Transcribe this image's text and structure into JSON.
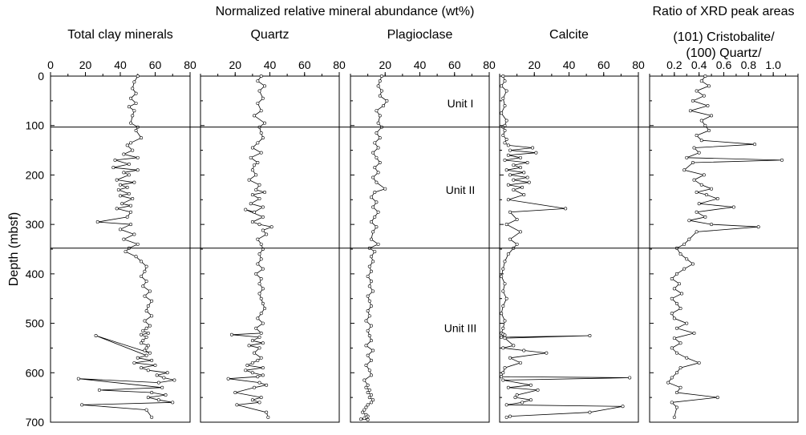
{
  "header": {
    "left": "Normalized relative mineral abundance (wt%)",
    "right": "Ratio of XRD peak areas"
  },
  "units": [
    {
      "label": "Unit I",
      "depth": 55
    },
    {
      "label": "Unit II",
      "depth": 230
    },
    {
      "label": "Unit III",
      "depth": 510
    }
  ],
  "boundaries": [
    103,
    348
  ],
  "y_axis": {
    "label": "Depth (mbsf)",
    "range": [
      0,
      700
    ],
    "ticks": [
      0,
      100,
      200,
      300,
      400,
      500,
      600,
      700
    ]
  },
  "chart_data": [
    {
      "type": "line",
      "title": "Total clay minerals",
      "x_range": [
        0,
        80
      ],
      "xticks": [
        "0",
        "20",
        "40",
        "60",
        "80"
      ],
      "x": [
        50,
        48,
        47,
        49,
        46,
        49,
        45,
        48,
        47,
        46,
        50,
        49,
        52,
        46,
        44,
        47,
        42,
        50,
        37,
        45,
        36,
        50,
        42,
        45,
        38,
        48,
        40,
        44,
        39,
        45,
        40,
        47,
        41,
        46,
        38,
        46,
        44,
        27,
        46,
        40,
        48,
        42,
        50,
        45,
        43,
        49,
        52,
        55,
        54,
        52,
        55,
        53,
        57,
        54,
        58,
        56,
        55,
        58,
        54,
        57,
        55,
        53,
        56,
        52,
        55,
        53,
        52,
        56,
        55,
        54,
        57,
        26,
        55,
        50,
        58,
        48,
        60,
        52,
        56,
        67,
        61,
        65,
        71,
        62,
        16,
        64,
        28,
        58,
        66,
        56,
        62,
        70,
        18,
        55,
        58
      ],
      "y": [
        0,
        12,
        25,
        35,
        45,
        55,
        62,
        70,
        80,
        95,
        103,
        110,
        125,
        135,
        140,
        150,
        158,
        165,
        170,
        178,
        185,
        190,
        195,
        200,
        210,
        215,
        220,
        225,
        230,
        238,
        242,
        248,
        258,
        262,
        268,
        275,
        285,
        295,
        300,
        310,
        320,
        330,
        340,
        348,
        355,
        365,
        375,
        385,
        395,
        405,
        415,
        425,
        435,
        445,
        455,
        465,
        475,
        485,
        495,
        505,
        510,
        515,
        520,
        523,
        528,
        535,
        540,
        545,
        550,
        555,
        560,
        525,
        565,
        570,
        575,
        580,
        585,
        590,
        595,
        600,
        605,
        610,
        615,
        620,
        612,
        630,
        635,
        640,
        645,
        650,
        655,
        660,
        665,
        675,
        690
      ]
    },
    {
      "type": "line",
      "title": "Quartz",
      "x_range": [
        0,
        80
      ],
      "xticks": [
        "20",
        "40",
        "60",
        "80"
      ],
      "x": [
        35,
        33,
        37,
        34,
        36,
        33,
        35,
        31,
        37,
        34,
        35,
        36,
        33,
        30,
        35,
        29,
        33,
        31,
        30,
        32,
        28,
        34,
        32,
        37,
        30,
        34,
        29,
        36,
        31,
        26,
        36,
        30,
        34,
        41,
        36,
        38,
        33,
        35,
        36,
        34,
        35,
        33,
        36,
        32,
        35,
        34,
        36,
        34,
        35,
        36,
        37,
        35,
        33,
        36,
        32,
        35,
        18,
        34,
        30,
        36,
        28,
        34,
        31,
        35,
        33,
        30,
        27,
        36,
        26,
        30,
        36,
        33,
        16,
        34,
        38,
        31,
        20,
        35,
        30,
        34,
        21,
        38,
        39
      ],
      "y": [
        0,
        10,
        20,
        30,
        45,
        55,
        70,
        80,
        95,
        103,
        115,
        125,
        135,
        145,
        155,
        165,
        175,
        180,
        190,
        200,
        210,
        220,
        230,
        235,
        240,
        248,
        258,
        265,
        275,
        270,
        285,
        295,
        300,
        305,
        312,
        320,
        330,
        340,
        350,
        360,
        370,
        380,
        390,
        400,
        410,
        420,
        430,
        440,
        450,
        460,
        470,
        480,
        490,
        500,
        510,
        520,
        523,
        528,
        535,
        540,
        545,
        550,
        560,
        570,
        575,
        580,
        585,
        590,
        595,
        600,
        605,
        608,
        612,
        620,
        625,
        630,
        640,
        650,
        655,
        660,
        665,
        680,
        690
      ]
    },
    {
      "type": "line",
      "title": "Plagioclase",
      "x_range": [
        0,
        80
      ],
      "xticks": [
        "20",
        "40",
        "60",
        "80"
      ],
      "x": [
        18,
        17,
        16,
        18,
        17,
        21,
        19,
        15,
        17,
        16,
        18,
        15,
        17,
        14,
        16,
        13,
        15,
        17,
        14,
        16,
        13,
        15,
        20,
        14,
        12,
        15,
        13,
        16,
        14,
        12,
        15,
        13,
        12,
        16,
        11,
        14,
        12,
        13,
        11,
        12,
        10,
        12,
        11,
        13,
        10,
        11,
        12,
        10,
        11,
        9,
        12,
        10,
        11,
        12,
        9,
        13,
        10,
        12,
        9,
        11,
        12,
        8,
        10,
        9,
        11,
        10,
        12,
        11,
        13,
        12,
        10,
        9,
        8,
        7,
        9,
        10,
        9,
        8,
        6,
        10
      ],
      "y": [
        0,
        10,
        20,
        30,
        40,
        50,
        60,
        70,
        80,
        95,
        103,
        115,
        125,
        135,
        145,
        155,
        165,
        175,
        185,
        195,
        205,
        215,
        228,
        235,
        245,
        255,
        265,
        275,
        285,
        295,
        305,
        315,
        330,
        340,
        348,
        355,
        365,
        375,
        385,
        395,
        405,
        415,
        425,
        435,
        445,
        455,
        465,
        475,
        485,
        495,
        505,
        515,
        525,
        535,
        545,
        555,
        565,
        575,
        585,
        595,
        605,
        615,
        625,
        630,
        635,
        640,
        645,
        650,
        655,
        660,
        665,
        670,
        675,
        680,
        685,
        688,
        690,
        692,
        694,
        695
      ]
    },
    {
      "type": "line",
      "title": "Calcite",
      "x_range": [
        0,
        80
      ],
      "xticks": [
        "20",
        "40",
        "60",
        "80"
      ],
      "x": [
        2,
        3,
        1,
        4,
        2,
        3,
        1,
        4,
        3,
        2,
        3,
        2,
        4,
        3,
        5,
        19,
        6,
        21,
        5,
        12,
        3,
        16,
        8,
        12,
        4,
        14,
        6,
        16,
        8,
        17,
        5,
        13,
        8,
        14,
        5,
        38,
        6,
        10,
        4,
        12,
        6,
        10,
        8,
        5,
        3,
        2,
        1,
        3,
        2,
        4,
        2,
        1,
        3,
        2,
        1,
        2,
        3,
        1,
        52,
        3,
        8,
        2,
        14,
        27,
        6,
        12,
        3,
        2,
        1,
        75,
        2,
        18,
        5,
        22,
        10,
        9,
        18,
        13,
        4,
        71,
        52,
        6,
        4
      ],
      "y": [
        0,
        10,
        20,
        30,
        45,
        60,
        75,
        90,
        100,
        103,
        110,
        120,
        128,
        135,
        140,
        145,
        150,
        155,
        160,
        165,
        170,
        175,
        180,
        185,
        190,
        195,
        200,
        205,
        210,
        215,
        220,
        225,
        230,
        240,
        250,
        268,
        275,
        290,
        300,
        315,
        330,
        340,
        348,
        360,
        375,
        390,
        405,
        420,
        435,
        450,
        465,
        480,
        495,
        510,
        520,
        522,
        524,
        528,
        525,
        530,
        545,
        550,
        555,
        560,
        570,
        580,
        590,
        600,
        608,
        610,
        615,
        625,
        630,
        635,
        645,
        650,
        655,
        660,
        665,
        668,
        680,
        688,
        690
      ]
    },
    {
      "type": "line",
      "title": "(101) Cristobalite/\n(100) Quartz/",
      "x_range": [
        0,
        1.2
      ],
      "xticks": [
        "0.2",
        "0.4",
        "0.6",
        "0.8",
        "1.0"
      ],
      "x": [
        0.45,
        0.42,
        0.48,
        0.38,
        0.44,
        0.35,
        0.47,
        0.33,
        0.5,
        0.42,
        0.45,
        0.48,
        0.38,
        0.42,
        0.85,
        0.36,
        0.4,
        0.3,
        1.07,
        0.35,
        0.28,
        0.44,
        0.36,
        0.42,
        0.5,
        0.38,
        0.46,
        0.55,
        0.4,
        0.68,
        0.38,
        0.45,
        0.32,
        0.5,
        0.88,
        0.38,
        0.32,
        0.28,
        0.22,
        0.25,
        0.3,
        0.35,
        0.28,
        0.22,
        0.18,
        0.24,
        0.2,
        0.26,
        0.18,
        0.22,
        0.25,
        0.18,
        0.2,
        0.3,
        0.22,
        0.36,
        0.2,
        0.25,
        0.18,
        0.22,
        0.3,
        0.4,
        0.25,
        0.22,
        0.18,
        0.15,
        0.25,
        0.22,
        0.55,
        0.18,
        0.22,
        0.2
      ],
      "y": [
        0,
        10,
        20,
        30,
        40,
        50,
        60,
        70,
        80,
        90,
        100,
        110,
        120,
        130,
        138,
        145,
        155,
        165,
        170,
        175,
        190,
        200,
        210,
        220,
        228,
        235,
        240,
        248,
        258,
        265,
        275,
        285,
        292,
        300,
        305,
        315,
        330,
        340,
        348,
        360,
        370,
        380,
        390,
        400,
        410,
        420,
        430,
        440,
        450,
        460,
        470,
        480,
        490,
        500,
        510,
        520,
        530,
        540,
        550,
        560,
        570,
        580,
        590,
        600,
        610,
        620,
        630,
        640,
        650,
        660,
        670,
        690
      ]
    }
  ]
}
